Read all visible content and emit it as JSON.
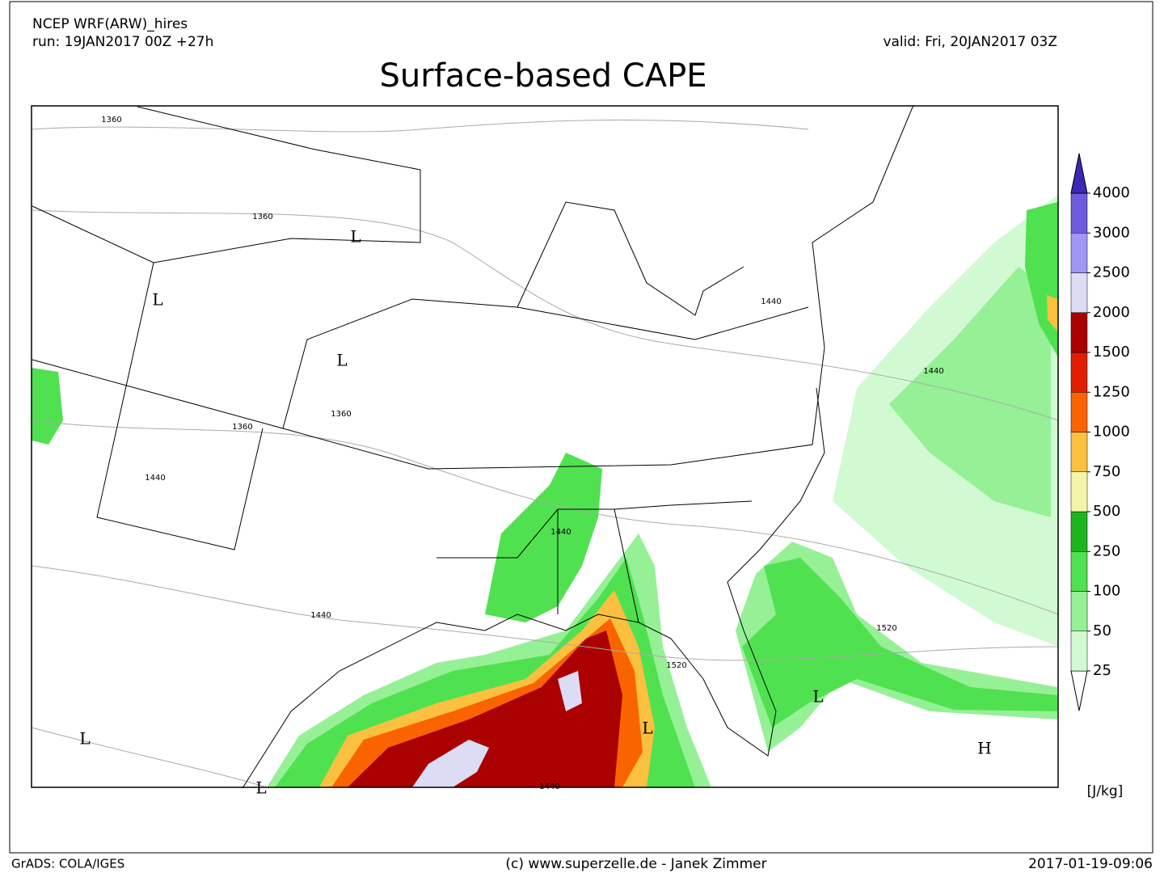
{
  "header": {
    "model": "NCEP WRF(ARW)_hires",
    "run": "run: 19JAN2017 00Z +27h",
    "valid": "valid: Fri, 20JAN2017 03Z"
  },
  "title": "Surface-based CAPE",
  "legend": {
    "levels": [
      25,
      50,
      100,
      250,
      500,
      750,
      1000,
      1250,
      1500,
      2000,
      2500,
      3000,
      4000
    ],
    "colors": [
      "#ffffff",
      "#d2fad2",
      "#96f096",
      "#50e150",
      "#1eb41e",
      "#f5f5aa",
      "#fbc040",
      "#fa6400",
      "#e11e00",
      "#aa0000",
      "#dcdcf5",
      "#a096f5",
      "#6e5adc",
      "#3c28b4"
    ],
    "unit": "[J/kg]"
  },
  "map": {
    "contour_labels": [
      "1360",
      "1360",
      "1360",
      "1360",
      "1440",
      "1440",
      "1440",
      "1440",
      "1440",
      "1440",
      "1520",
      "1520"
    ],
    "pressure_centers": [
      "L",
      "L",
      "L",
      "L",
      "L",
      "L",
      "L",
      "H"
    ]
  },
  "footer": {
    "left": "GrADS: COLA/IGES",
    "center": "(c) www.superzelle.de - Janek Zimmer",
    "right": "2017-01-19-09:06"
  }
}
